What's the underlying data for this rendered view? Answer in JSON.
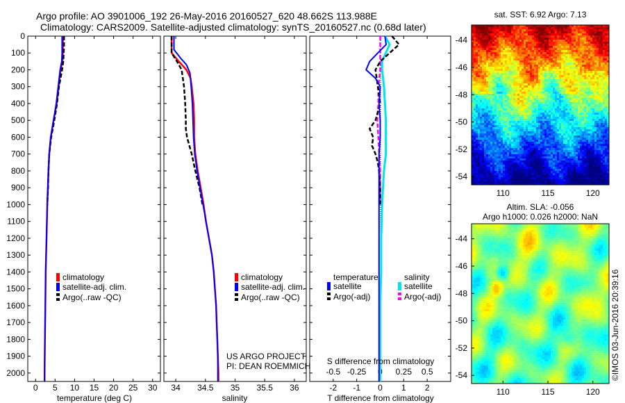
{
  "header": {
    "line1": "Argo profile: AO 3901006_192 26-May-2016 20160527_620 48.662S 113.988E",
    "line2": "Climatology: CARS2009. Satellite-adjusted climatology: synTS_20160527.nc (0.68d later)"
  },
  "colors": {
    "climatology": "#ff0000",
    "satellite": "#0000ff",
    "argo": "#000000",
    "sat_salinity": "#00e5e5",
    "argo_salinity": "#ff00ff"
  },
  "chart_data": [
    {
      "type": "line",
      "xlabel": "temperature (deg C)",
      "xlim": [
        -2,
        32
      ],
      "ylim": [
        2050,
        0
      ],
      "xticks": [
        "0",
        "5",
        "10",
        "15",
        "20",
        "25",
        "30"
      ],
      "yticks": [
        "0",
        "100",
        "200",
        "300",
        "400",
        "500",
        "600",
        "700",
        "800",
        "900",
        "1000",
        "1100",
        "1200",
        "1300",
        "1400",
        "1500",
        "1600",
        "1700",
        "1800",
        "1900",
        "2000"
      ],
      "legend": [
        "climatology",
        "satellite-adj. clim.",
        "Argo(..raw -QC)"
      ],
      "series": [
        {
          "name": "climatology",
          "depth": [
            0,
            100,
            150,
            200,
            300,
            400,
            500,
            600,
            700,
            800,
            1000,
            1200,
            1400,
            1600,
            1800,
            2000,
            2050
          ],
          "values": [
            7.0,
            7.0,
            6.9,
            6.4,
            5.9,
            5.4,
            4.6,
            3.9,
            3.5,
            3.3,
            3.0,
            2.8,
            2.6,
            2.5,
            2.4,
            2.3,
            2.3
          ]
        },
        {
          "name": "satellite-adj. clim.",
          "depth": [
            0,
            100,
            150,
            200,
            300,
            400,
            500,
            600,
            700,
            800,
            1000,
            1200,
            1400,
            1600,
            1800,
            2000,
            2050
          ],
          "values": [
            6.8,
            6.8,
            6.7,
            6.3,
            5.8,
            5.3,
            4.6,
            3.9,
            3.5,
            3.3,
            3.0,
            2.8,
            2.6,
            2.5,
            2.4,
            2.3,
            2.3
          ]
        },
        {
          "name": "Argo(..raw -QC)",
          "depth": [
            0,
            50,
            100,
            150,
            200,
            300,
            400,
            500,
            600,
            700,
            800,
            900,
            1000
          ],
          "values": [
            7.3,
            7.3,
            7.2,
            7.1,
            6.8,
            6.0,
            5.5,
            4.8,
            4.0,
            3.5,
            3.3,
            3.2,
            3.0
          ]
        }
      ]
    },
    {
      "type": "line",
      "xlabel": "salinity",
      "xlim": [
        33.8,
        36.2
      ],
      "ylim": [
        2050,
        0
      ],
      "xticks": [
        "34",
        "34.5",
        "35",
        "35.5",
        "36"
      ],
      "legend": [
        "climatology",
        "satellite-adj. clim.",
        "Argo(..raw -QC)"
      ],
      "annotation": [
        "US ARGO PROJECT",
        "PI: DEAN ROEMMICH"
      ],
      "series": [
        {
          "name": "climatology",
          "depth": [
            0,
            100,
            150,
            200,
            250,
            300,
            400,
            500,
            600,
            700,
            800,
            900,
            1000,
            1100,
            1200,
            1300,
            1400,
            1500,
            1600,
            1700,
            1800,
            1900,
            2000,
            2050
          ],
          "values": [
            33.93,
            33.93,
            34.05,
            34.18,
            34.25,
            34.27,
            34.3,
            34.31,
            34.31,
            34.33,
            34.37,
            34.42,
            34.47,
            34.51,
            34.56,
            34.61,
            34.64,
            34.66,
            34.68,
            34.69,
            34.7,
            34.71,
            34.72,
            34.72
          ]
        },
        {
          "name": "satellite-adj. clim.",
          "depth": [
            0,
            80,
            130,
            170,
            220,
            300,
            400,
            500,
            600,
            700,
            800,
            900,
            1000,
            1100,
            1200,
            1300,
            1400,
            1500,
            1600,
            1700,
            1800,
            1900,
            2000,
            2050
          ],
          "values": [
            33.97,
            33.97,
            34.08,
            34.18,
            34.24,
            34.26,
            34.28,
            34.29,
            34.3,
            34.32,
            34.36,
            34.41,
            34.46,
            34.51,
            34.56,
            34.61,
            34.64,
            34.66,
            34.68,
            34.69,
            34.7,
            34.71,
            34.71,
            34.71
          ]
        },
        {
          "name": "Argo(..raw -QC)",
          "depth": [
            0,
            100,
            150,
            200,
            300,
            400,
            500,
            550,
            600,
            650,
            700,
            800,
            900,
            1000
          ],
          "values": [
            33.93,
            33.93,
            34.02,
            34.1,
            34.14,
            34.16,
            34.17,
            34.17,
            34.19,
            34.23,
            34.27,
            34.33,
            34.4,
            34.45
          ]
        }
      ]
    },
    {
      "type": "line",
      "xlabel": "T difference from climatology",
      "x2label": "S difference from climatology",
      "xlim": [
        -3,
        3
      ],
      "x2lim": [
        -0.75,
        0.75
      ],
      "ylim": [
        2050,
        0
      ],
      "xticks": [
        "-2",
        "-1",
        "0",
        "1",
        "2"
      ],
      "x2ticks": [
        "-0.5",
        "-0.25",
        "0",
        "0.25",
        "0.5"
      ],
      "legend_headers": [
        "temperature",
        "salinity"
      ],
      "legend": [
        "satellite",
        "Argo(-adj)",
        "satellite",
        "Argo(-adj)"
      ],
      "series": [
        {
          "name": "satellite",
          "depth": [
            0,
            50,
            100,
            150,
            200,
            250,
            300,
            400,
            500,
            600,
            700,
            800,
            1000,
            1200,
            1400,
            1600,
            1800,
            2000,
            2050
          ],
          "values": [
            0.2,
            0.25,
            -0.1,
            -0.45,
            -0.6,
            -0.2,
            0.0,
            -0.05,
            0.0,
            0.0,
            -0.05,
            -0.05,
            -0.05,
            -0.05,
            -0.05,
            -0.05,
            -0.05,
            -0.05,
            -0.05
          ]
        },
        {
          "name": "Argo(-adj)",
          "depth": [
            0,
            50,
            100,
            150,
            200,
            300,
            400,
            500,
            550,
            600,
            650,
            700,
            750,
            800,
            900,
            1000
          ],
          "values": [
            0.5,
            0.8,
            0.4,
            0.0,
            -0.2,
            -0.1,
            0.0,
            -0.2,
            -0.45,
            -0.3,
            -0.35,
            -0.2,
            -0.1,
            -0.05,
            0.0,
            0.0
          ]
        },
        {
          "name": "satellite",
          "depth": [
            0,
            50,
            100,
            150,
            200,
            250,
            300,
            400,
            500,
            600,
            700,
            800,
            1000,
            1200,
            1400,
            1600,
            1800,
            2000,
            2050
          ],
          "values": [
            0.05,
            0.1,
            0.06,
            0.02,
            0.02,
            0.03,
            0.04,
            0.05,
            0.06,
            0.06,
            0.06,
            0.04,
            0.02,
            0.01,
            0.01,
            0.0,
            0.0,
            0.0,
            0.0
          ]
        },
        {
          "name": "Argo(-adj)",
          "depth": [
            0,
            100,
            200,
            300,
            400,
            500,
            600,
            700,
            800,
            900,
            1000
          ],
          "values": [
            0.0,
            0.0,
            0.0,
            -0.02,
            -0.02,
            -0.03,
            -0.02,
            -0.01,
            0.0,
            0.0,
            0.0
          ]
        }
      ]
    },
    {
      "type": "heatmap",
      "title": "sat. SST: 6.92 Argo: 7.13",
      "xlim": [
        106.5,
        121.8
      ],
      "ylim": [
        -54.6,
        -42.9
      ],
      "xticks": [
        "110",
        "115",
        "120"
      ],
      "yticks": [
        "-44",
        "-46",
        "-48",
        "-50",
        "-52",
        "-54"
      ]
    },
    {
      "type": "heatmap",
      "title": "Altim. SLA: -0.056",
      "subtitle": "Argo h1000: 0.026 h2000: NaN",
      "xlim": [
        106.5,
        121.8
      ],
      "ylim": [
        -54.6,
        -42.9
      ],
      "xticks": [
        "110",
        "115",
        "120"
      ],
      "yticks": [
        "-44",
        "-46",
        "-48",
        "-50",
        "-52",
        "-54"
      ]
    }
  ],
  "footer": {
    "credit": "©IMOS 03-Jun-2016 20:39:16"
  }
}
